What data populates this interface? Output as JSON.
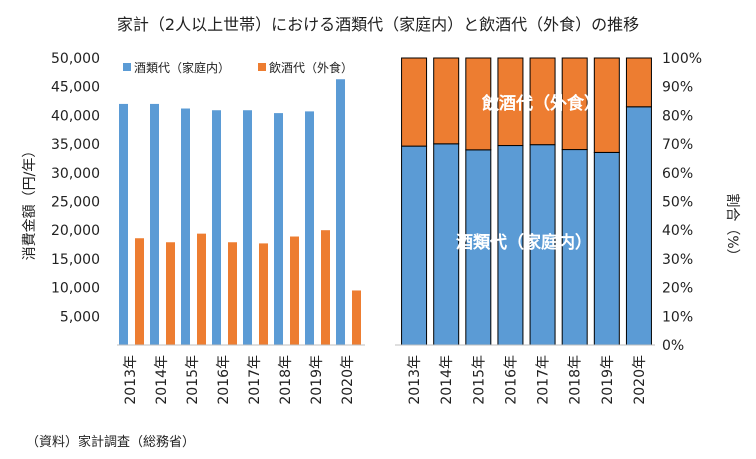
{
  "chart_data": [
    {
      "type": "bar",
      "title": "家計（2人以上世帯）における酒類代（家庭内）と飲酒代（外食）の推移",
      "ylabel": "消費金額（円/年）",
      "ylim": [
        0,
        50000
      ],
      "yticks": [
        "5,000",
        "10,000",
        "15,000",
        "20,000",
        "25,000",
        "30,000",
        "35,000",
        "40,000",
        "45,000",
        "50,000"
      ],
      "categories": [
        "2013年",
        "2014年",
        "2015年",
        "2016年",
        "2017年",
        "2018年",
        "2019年",
        "2020年"
      ],
      "legend_position": "top-left",
      "grid": false,
      "series": [
        {
          "name": "酒類代（家庭内）",
          "color": "#5b9bd5",
          "values": [
            42000,
            42000,
            41200,
            40900,
            40900,
            40400,
            40700,
            46300
          ]
        },
        {
          "name": "飲酒代（外食）",
          "color": "#ed7d31",
          "values": [
            18600,
            17900,
            19400,
            17900,
            17700,
            18900,
            20000,
            9500
          ]
        }
      ]
    },
    {
      "type": "bar",
      "stacked": true,
      "ylabel": "割合（%）",
      "ylim": [
        0,
        100
      ],
      "yticks": [
        "0%",
        "10%",
        "20%",
        "30%",
        "40%",
        "50%",
        "60%",
        "70%",
        "80%",
        "90%",
        "100%"
      ],
      "categories": [
        "2013年",
        "2014年",
        "2015年",
        "2016年",
        "2017年",
        "2018年",
        "2019年",
        "2020年"
      ],
      "grid": false,
      "series": [
        {
          "name": "酒類代（家庭内）",
          "color": "#5b9bd5",
          "values": [
            69.3,
            70.1,
            68.0,
            69.5,
            69.8,
            68.1,
            67.1,
            83.0
          ]
        },
        {
          "name": "飲酒代（外食）",
          "color": "#ed7d31",
          "values": [
            30.7,
            29.9,
            32.0,
            30.5,
            30.2,
            31.9,
            32.9,
            17.0
          ]
        }
      ]
    }
  ],
  "source_note": "（資料）家計調査（総務省）"
}
